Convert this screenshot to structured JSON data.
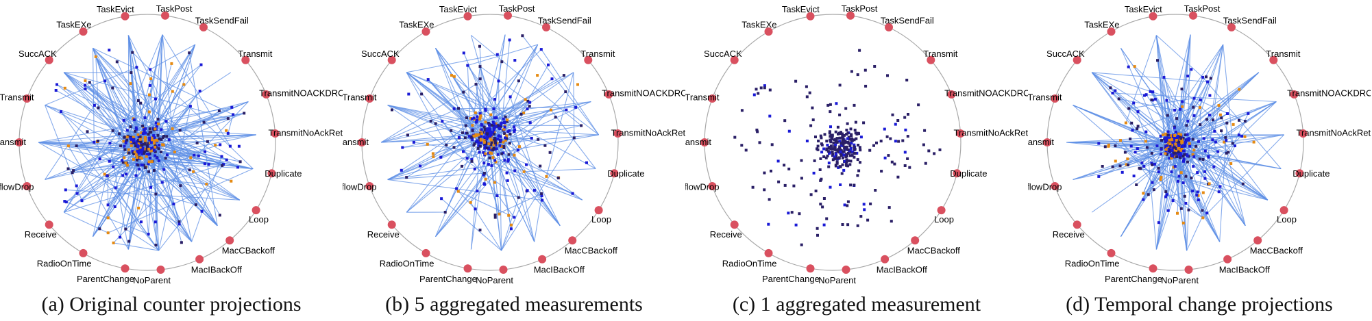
{
  "chart_data": [
    {
      "type": "scatter",
      "caption": "(a) Original counter projections",
      "layout": "radviz",
      "anchors": [
        "TaskPost",
        "TaskSendFail",
        "Transmit",
        "TransmitNOACKDROP",
        "TransmitNoAckRetrans",
        "Duplicate",
        "Loop",
        "MacCBackoff",
        "MacIBackOff",
        "NoParent",
        "ParentChange",
        "RadioOnTime",
        "Receive",
        "ReceiveOverflowDrop",
        "Retransmit",
        "SelfTransmit",
        "SuccACK",
        "TaskEXe",
        "TaskEvict"
      ],
      "points_shown": true,
      "links_shown": true,
      "link_density": "high",
      "spread": "wide",
      "center_offset": [
        -0.03,
        0.02
      ]
    },
    {
      "type": "scatter",
      "caption": "(b) 5 aggregated measurements",
      "layout": "radviz",
      "anchors": [
        "TaskPost",
        "TaskSendFail",
        "Transmit",
        "TransmitNOACKDROP",
        "TransmitNoAckRetrans",
        "Duplicate",
        "Loop",
        "MacCBackoff",
        "MacIBackOff",
        "NoParent",
        "ParentChange",
        "RadioOnTime",
        "Receive",
        "ReceiveOverflowDrop",
        "Retransmit",
        "SelfTransmit",
        "SuccACK",
        "TaskEXe",
        "TaskEvict"
      ],
      "points_shown": true,
      "links_shown": true,
      "link_density": "medium",
      "spread": "wide",
      "center_offset": [
        0.0,
        -0.05
      ]
    },
    {
      "type": "scatter",
      "caption": "(c) 1 aggregated measurement",
      "layout": "radviz",
      "anchors": [
        "TaskPost",
        "TaskSendFail",
        "Transmit",
        "TransmitNOACKDROP",
        "TransmitNoAckRetrans",
        "Duplicate",
        "Loop",
        "MacCBackoff",
        "MacIBackOff",
        "NoParent",
        "ParentChange",
        "RadioOnTime",
        "Receive",
        "ReceiveOverflowDrop",
        "Retransmit",
        "SelfTransmit",
        "SuccACK",
        "TaskEXe",
        "TaskEvict"
      ],
      "points_shown": true,
      "links_shown": false,
      "link_density": "none",
      "spread": "wide",
      "center_offset": [
        0.05,
        0.05
      ]
    },
    {
      "type": "scatter",
      "caption": "(d) Temporal change projections",
      "layout": "radviz",
      "anchors": [
        "TaskPost",
        "TaskSendFail",
        "Transmit",
        "TransmitNOACKDROP",
        "TransmitNoAckRetrans",
        "Duplicate",
        "Loop",
        "MacCBackoff",
        "MacIBackOff",
        "NoParent",
        "ParentChange",
        "RadioOnTime",
        "Receive",
        "ReceiveOverflowDrop",
        "Retransmit",
        "SelfTransmit",
        "SuccACK",
        "TaskEXe",
        "TaskEvict"
      ],
      "points_shown": true,
      "links_shown": true,
      "link_density": "high",
      "spread": "compact",
      "center_offset": [
        0.0,
        0.02
      ]
    }
  ],
  "colors": {
    "anchor": "#d9505f",
    "circle": "#a8a8a8",
    "point_primary": "#1a1ad6",
    "point_dark": "#2a1f66",
    "point_accent": "#e58a12",
    "link": "#5d8fe6"
  }
}
